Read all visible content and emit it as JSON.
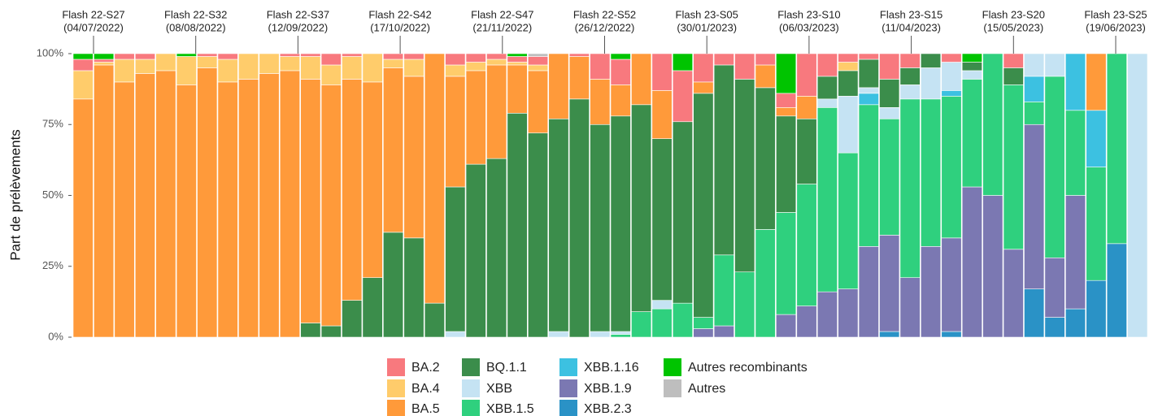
{
  "chart_data": {
    "type": "stacked_bar",
    "y_label": "Part de prélèvements",
    "ylim": [
      0,
      100
    ],
    "yticks": [
      {
        "value": 0,
        "label": "0%"
      },
      {
        "value": 25,
        "label": "25%"
      },
      {
        "value": 50,
        "label": "50%"
      },
      {
        "value": 75,
        "label": "75%"
      },
      {
        "value": 100,
        "label": "100%"
      }
    ],
    "annotations": [
      {
        "label": "Flash 22-S27",
        "date": "(04/07/2022)"
      },
      {
        "label": "Flash 22-S32",
        "date": "(08/08/2022)"
      },
      {
        "label": "Flash 22-S37",
        "date": "(12/09/2022)"
      },
      {
        "label": "Flash 22-S42",
        "date": "(17/10/2022)"
      },
      {
        "label": "Flash 22-S47",
        "date": "(21/11/2022)"
      },
      {
        "label": "Flash 22-S52",
        "date": "(26/12/2022)"
      },
      {
        "label": "Flash 23-S05",
        "date": "(30/01/2023)"
      },
      {
        "label": "Flash 23-S10",
        "date": "(06/03/2023)"
      },
      {
        "label": "Flash 23-S15",
        "date": "(11/04/2023)"
      },
      {
        "label": "Flash 23-S20",
        "date": "(15/05/2023)"
      },
      {
        "label": "Flash 23-S25",
        "date": "(19/06/2023)"
      }
    ],
    "categories": [
      null,
      null,
      null,
      null,
      null,
      null,
      null,
      null,
      null,
      null,
      null,
      null,
      null,
      null,
      null,
      null,
      null,
      null,
      null,
      null,
      null,
      null,
      null,
      null,
      null,
      null,
      null,
      null,
      null,
      null,
      null,
      null,
      null,
      null,
      null,
      null,
      null,
      null,
      null,
      null,
      null,
      null,
      null,
      null,
      null,
      null,
      null,
      null,
      null,
      null,
      null,
      null
    ],
    "series": [
      {
        "name": "BA.2",
        "color": "#f8797e",
        "values": [
          4,
          1,
          2,
          2,
          0,
          0,
          1,
          2,
          0,
          0,
          1,
          1,
          4,
          1,
          0,
          2,
          2,
          0,
          4,
          3,
          2,
          2,
          3,
          0,
          1,
          9,
          9,
          0,
          13,
          18,
          10,
          4,
          9,
          4,
          5,
          15,
          8,
          3,
          2,
          9,
          5,
          0,
          3,
          0,
          0,
          5,
          0,
          0,
          0,
          0,
          0,
          0
        ]
      },
      {
        "name": "BA.4",
        "color": "#ffcc6b",
        "values": [
          10,
          1,
          8,
          5,
          6,
          10,
          4,
          8,
          9,
          7,
          5,
          8,
          7,
          8,
          10,
          3,
          6,
          0,
          4,
          3,
          2,
          1,
          2,
          0,
          0,
          0,
          0,
          0,
          0,
          0,
          0,
          0,
          0,
          0,
          0,
          0,
          0,
          3,
          0,
          0,
          0,
          0,
          0,
          0,
          0,
          0,
          0,
          0,
          0,
          0,
          0,
          0
        ]
      },
      {
        "name": "BA.5",
        "color": "#ff9a3a",
        "values": [
          84,
          96,
          90,
          93,
          94,
          89,
          95,
          90,
          91,
          93,
          94,
          86,
          85,
          78,
          69,
          58,
          57,
          88,
          39,
          33,
          33,
          17,
          22,
          23,
          15,
          16,
          11,
          18,
          17,
          0,
          4,
          0,
          0,
          8,
          3,
          8,
          0,
          0,
          0,
          0,
          0,
          0,
          0,
          0,
          0,
          0,
          0,
          0,
          0,
          20,
          0,
          0
        ]
      },
      {
        "name": "BQ.1.1",
        "color": "#3b8d4b",
        "values": [
          0,
          0,
          0,
          0,
          0,
          0,
          0,
          0,
          0,
          0,
          0,
          5,
          4,
          13,
          21,
          37,
          35,
          12,
          51,
          61,
          63,
          79,
          72,
          75,
          84,
          73,
          76,
          73,
          57,
          64,
          79,
          67,
          68,
          50,
          34,
          23,
          8,
          9,
          10,
          10,
          6,
          5,
          0,
          3,
          0,
          6,
          0,
          0,
          0,
          0,
          0,
          0
        ]
      },
      {
        "name": "XBB",
        "color": "#c5e3f3",
        "values": [
          0,
          0,
          0,
          0,
          0,
          0,
          0,
          0,
          0,
          0,
          0,
          0,
          0,
          0,
          0,
          0,
          0,
          0,
          2,
          0,
          0,
          0,
          0,
          2,
          0,
          2,
          1,
          0,
          3,
          0,
          0,
          0,
          0,
          0,
          0,
          0,
          3,
          20,
          2,
          4,
          5,
          11,
          10,
          3,
          0,
          0,
          8,
          8,
          0,
          0,
          0,
          100
        ]
      },
      {
        "name": "XBB.1.5",
        "color": "#2fd07e",
        "values": [
          0,
          0,
          0,
          0,
          0,
          0,
          0,
          0,
          0,
          0,
          0,
          0,
          0,
          0,
          0,
          0,
          0,
          0,
          0,
          0,
          0,
          0,
          0,
          0,
          0,
          0,
          1,
          9,
          10,
          12,
          4,
          25,
          23,
          38,
          36,
          43,
          65,
          48,
          50,
          41,
          63,
          52,
          50,
          38,
          50,
          58,
          8,
          64,
          30,
          40,
          67,
          0
        ]
      },
      {
        "name": "XBB.1.16",
        "color": "#3cc1e1",
        "values": [
          0,
          0,
          0,
          0,
          0,
          0,
          0,
          0,
          0,
          0,
          0,
          0,
          0,
          0,
          0,
          0,
          0,
          0,
          0,
          0,
          0,
          0,
          0,
          0,
          0,
          0,
          0,
          0,
          0,
          0,
          0,
          0,
          0,
          0,
          0,
          0,
          0,
          0,
          4,
          0,
          0,
          0,
          2,
          0,
          0,
          0,
          9,
          0,
          20,
          20,
          0,
          0
        ]
      },
      {
        "name": "XBB.1.9",
        "color": "#7b78b2",
        "values": [
          0,
          0,
          0,
          0,
          0,
          0,
          0,
          0,
          0,
          0,
          0,
          0,
          0,
          0,
          0,
          0,
          0,
          0,
          0,
          0,
          0,
          0,
          0,
          0,
          0,
          0,
          0,
          0,
          0,
          0,
          3,
          4,
          0,
          0,
          8,
          11,
          16,
          17,
          32,
          34,
          21,
          32,
          33,
          53,
          50,
          31,
          58,
          21,
          40,
          0,
          0,
          0
        ]
      },
      {
        "name": "XBB.2.3",
        "color": "#2a92c6",
        "values": [
          0,
          0,
          0,
          0,
          0,
          0,
          0,
          0,
          0,
          0,
          0,
          0,
          0,
          0,
          0,
          0,
          0,
          0,
          0,
          0,
          0,
          0,
          0,
          0,
          0,
          0,
          0,
          0,
          0,
          0,
          0,
          0,
          0,
          0,
          0,
          0,
          0,
          0,
          0,
          2,
          0,
          0,
          2,
          0,
          0,
          0,
          17,
          7,
          10,
          20,
          33,
          0
        ]
      },
      {
        "name": "Autres recombinants",
        "color": "#00c400",
        "values": [
          2,
          2,
          0,
          0,
          0,
          1,
          0,
          0,
          0,
          0,
          0,
          0,
          0,
          0,
          0,
          0,
          0,
          0,
          0,
          0,
          0,
          1,
          0,
          0,
          0,
          0,
          2,
          0,
          0,
          6,
          0,
          0,
          0,
          0,
          14,
          0,
          0,
          0,
          0,
          0,
          0,
          0,
          0,
          3,
          0,
          0,
          0,
          0,
          0,
          0,
          0,
          0
        ]
      },
      {
        "name": "Autres",
        "color": "#bebebe",
        "values": [
          0,
          0,
          0,
          0,
          0,
          0,
          0,
          0,
          0,
          0,
          0,
          0,
          0,
          0,
          0,
          0,
          0,
          0,
          0,
          0,
          0,
          0,
          1,
          0,
          0,
          0,
          0,
          0,
          0,
          0,
          0,
          0,
          0,
          0,
          0,
          0,
          0,
          0,
          0,
          0,
          0,
          0,
          0,
          0,
          0,
          0,
          0,
          0,
          0,
          0,
          0,
          0
        ]
      }
    ]
  }
}
